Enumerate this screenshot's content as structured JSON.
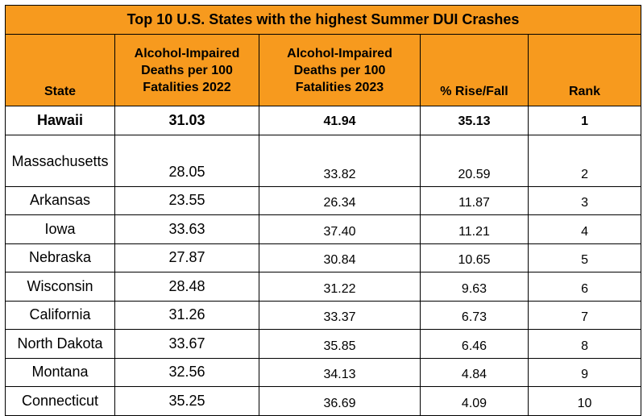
{
  "chart_data": {
    "type": "table",
    "title": "Top 10 U.S. States with the highest Summer DUI Crashes",
    "columns": [
      "State",
      "Alcohol-Impaired Deaths per 100 Fatalities 2022",
      "Alcohol-Impaired Deaths per 100 Fatalities 2023",
      "% Rise/Fall",
      "Rank"
    ],
    "rows": [
      {
        "state": "Hawaii",
        "v2022": "31.03",
        "v2023": "41.94",
        "change": "35.13",
        "rank": "1"
      },
      {
        "state": "Massachusetts",
        "v2022": "28.05",
        "v2023": "33.82",
        "change": "20.59",
        "rank": "2"
      },
      {
        "state": "Arkansas",
        "v2022": "23.55",
        "v2023": "26.34",
        "change": "11.87",
        "rank": "3"
      },
      {
        "state": "Iowa",
        "v2022": "33.63",
        "v2023": "37.40",
        "change": "11.21",
        "rank": "4"
      },
      {
        "state": "Nebraska",
        "v2022": "27.87",
        "v2023": "30.84",
        "change": "10.65",
        "rank": "5"
      },
      {
        "state": "Wisconsin",
        "v2022": "28.48",
        "v2023": "31.22",
        "change": "9.63",
        "rank": "6"
      },
      {
        "state": "California",
        "v2022": "31.26",
        "v2023": "33.37",
        "change": "6.73",
        "rank": "7"
      },
      {
        "state": "North Dakota",
        "v2022": "33.67",
        "v2023": "35.85",
        "change": "6.46",
        "rank": "8"
      },
      {
        "state": "Montana",
        "v2022": "32.56",
        "v2023": "34.13",
        "change": "4.84",
        "rank": "9"
      },
      {
        "state": "Connecticut",
        "v2022": "35.25",
        "v2023": "36.69",
        "change": "4.09",
        "rank": "10"
      }
    ]
  },
  "colors": {
    "header_background": "#f79a1e",
    "border": "#000000"
  }
}
